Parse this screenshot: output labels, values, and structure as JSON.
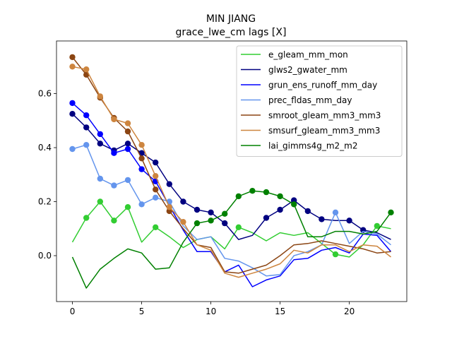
{
  "chart_data": {
    "type": "line",
    "title": "MIN JIANG",
    "subtitle": "grace_lwe_cm lags [X]",
    "xlabel": "",
    "ylabel": "",
    "xlim": [
      -1.15,
      24.15
    ],
    "ylim": [
      -0.17,
      0.795
    ],
    "xticks": [
      0,
      5,
      10,
      15,
      20
    ],
    "yticks": [
      0.0,
      0.2,
      0.4,
      0.6
    ],
    "ytick_labels": [
      "0.0",
      "0.2",
      "0.4",
      "0.6"
    ],
    "grid": false,
    "legend_position": "top-right",
    "x": [
      0,
      1,
      2,
      3,
      4,
      5,
      6,
      7,
      8,
      9,
      10,
      11,
      12,
      13,
      14,
      15,
      16,
      17,
      18,
      19,
      20,
      21,
      22,
      23
    ],
    "series": [
      {
        "name": "e_gleam_mm_mon",
        "color": "#32cd32",
        "values": [
          0.05,
          0.14,
          0.2,
          0.13,
          0.18,
          0.05,
          0.105,
          0.07,
          0.03,
          0.06,
          0.07,
          0.025,
          0.105,
          0.085,
          0.055,
          0.085,
          0.075,
          0.085,
          0.045,
          0.005,
          -0.005,
          0.04,
          0.11,
          0.1
        ],
        "markers": [
          1,
          2,
          3,
          4,
          6,
          12,
          19,
          22
        ]
      },
      {
        "name": "glws2_gwater_mm",
        "color": "#000080",
        "values": [
          0.525,
          0.475,
          0.415,
          0.39,
          0.415,
          0.38,
          0.345,
          0.265,
          0.2,
          0.17,
          0.16,
          0.12,
          0.06,
          0.075,
          0.14,
          0.17,
          0.205,
          0.165,
          0.135,
          0.13,
          0.13,
          0.095,
          0.085,
          0.06
        ],
        "markers": [
          0,
          1,
          2,
          3,
          4,
          5,
          6,
          7,
          8,
          9,
          10,
          11,
          14,
          15,
          16,
          17,
          18,
          20,
          21
        ]
      },
      {
        "name": "grun_ens_runoff_mm_day",
        "color": "#0000ff",
        "values": [
          0.565,
          0.52,
          0.45,
          0.38,
          0.395,
          0.32,
          0.275,
          0.185,
          0.095,
          0.015,
          0.015,
          -0.06,
          -0.035,
          -0.115,
          -0.09,
          -0.075,
          -0.015,
          -0.01,
          0.02,
          0.03,
          0.01,
          0.08,
          0.075,
          0.015
        ],
        "markers": [
          0,
          1,
          2,
          3,
          4,
          5,
          6
        ]
      },
      {
        "name": "prec_fldas_mm_day",
        "color": "#6495ed",
        "values": [
          0.395,
          0.41,
          0.285,
          0.26,
          0.28,
          0.19,
          0.215,
          0.2,
          0.11,
          0.06,
          0.07,
          -0.01,
          -0.02,
          -0.045,
          -0.075,
          -0.07,
          0.0,
          0.015,
          0.04,
          0.16,
          0.045,
          0.09,
          0.08,
          0.04
        ],
        "markers": [
          0,
          1,
          2,
          3,
          4,
          5,
          6,
          7,
          19
        ]
      },
      {
        "name": "smroot_gleam_mm3_mm3",
        "color": "#8b4513",
        "values": [
          0.735,
          0.67,
          0.585,
          0.51,
          0.46,
          0.36,
          0.245,
          0.165,
          0.1,
          0.04,
          0.03,
          -0.06,
          -0.065,
          -0.05,
          -0.035,
          0.0,
          0.04,
          0.045,
          0.055,
          0.045,
          0.035,
          0.025,
          0.01,
          0.015
        ],
        "markers": [
          0,
          1,
          2,
          3,
          4,
          5,
          6,
          7
        ]
      },
      {
        "name": "smsurf_gleam_mm3_mm3",
        "color": "#cd853f",
        "values": [
          0.7,
          0.69,
          0.59,
          0.505,
          0.49,
          0.41,
          0.295,
          0.18,
          0.125,
          0.04,
          0.02,
          -0.065,
          -0.08,
          -0.065,
          -0.05,
          -0.03,
          0.02,
          0.01,
          0.04,
          0.04,
          0.015,
          0.04,
          0.035,
          -0.005
        ],
        "markers": [
          0,
          1,
          2,
          3,
          4,
          5,
          6,
          7,
          8
        ]
      },
      {
        "name": "lai_gimms4g_m2_m2",
        "color": "#008000",
        "values": [
          -0.005,
          -0.12,
          -0.05,
          -0.01,
          0.025,
          0.01,
          -0.05,
          -0.045,
          0.05,
          0.12,
          0.13,
          0.155,
          0.22,
          0.24,
          0.235,
          0.22,
          0.19,
          0.07,
          0.07,
          0.09,
          0.09,
          0.08,
          0.09,
          0.16
        ],
        "markers": [
          9,
          10,
          11,
          12,
          13,
          14,
          15,
          16,
          23
        ]
      }
    ]
  }
}
